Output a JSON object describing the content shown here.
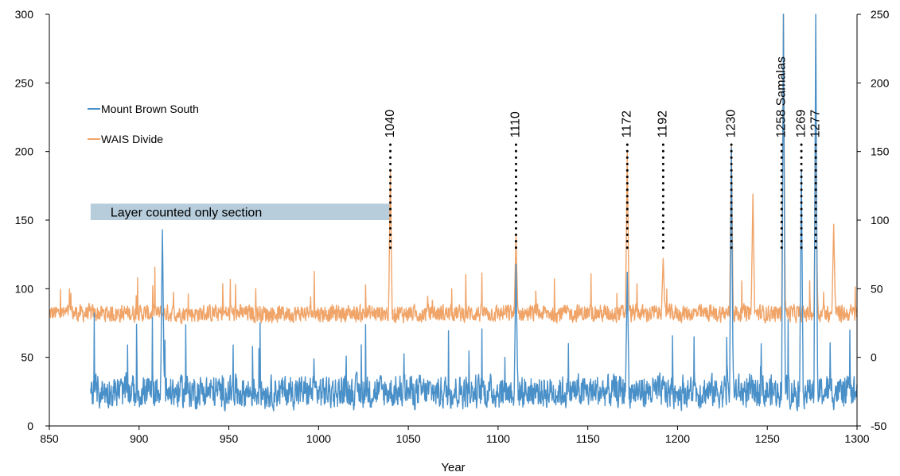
{
  "chart_data": {
    "type": "line",
    "title": "",
    "xlabel": "Year",
    "ylabel": "",
    "ylabel_right": "",
    "xlim": [
      850,
      1300
    ],
    "ylim": [
      0,
      300
    ],
    "ylim_right": [
      -50,
      250
    ],
    "x_ticks": [
      850,
      900,
      950,
      1000,
      1050,
      1100,
      1150,
      1200,
      1250,
      1300
    ],
    "y_ticks": [
      0,
      50,
      100,
      150,
      200,
      250,
      300
    ],
    "y_ticks_right": [
      -50,
      0,
      50,
      100,
      150,
      200,
      250
    ],
    "grid": false,
    "legend_position": "left",
    "series": [
      {
        "name": "Mount Brown South",
        "axis": "left",
        "color": "#4a90c8",
        "x_range": [
          873,
          1300
        ],
        "baseline": 25,
        "noise": 15,
        "peaks": [
          [
            913,
            143
          ],
          [
            1110,
            118
          ],
          [
            1172,
            112
          ],
          [
            1230,
            203
          ],
          [
            1259,
            300
          ],
          [
            1269,
            186
          ],
          [
            1277,
            300
          ]
        ]
      },
      {
        "name": "WAIS Divide",
        "axis": "right",
        "color": "#f0a468",
        "x_range": [
          850,
          1300
        ],
        "baseline": 32,
        "noise": 8,
        "peaks": [
          [
            1040,
            137
          ],
          [
            1110,
            89
          ],
          [
            1172,
            149
          ],
          [
            1192,
            72
          ],
          [
            1230,
            155
          ],
          [
            1242,
            119
          ],
          [
            1259,
            250
          ],
          [
            1277,
            168
          ],
          [
            1287,
            97
          ]
        ]
      }
    ],
    "annotations": {
      "events": [
        {
          "year": 1040,
          "label": "1040"
        },
        {
          "year": 1110,
          "label": "1110"
        },
        {
          "year": 1172,
          "label": "1172"
        },
        {
          "year": 1192,
          "label": "1192"
        },
        {
          "year": 1230,
          "label": "1230"
        },
        {
          "year": 1258,
          "label": "1258 Samalas"
        },
        {
          "year": 1269,
          "label": "1269"
        },
        {
          "year": 1277,
          "label": "1277"
        }
      ],
      "band": {
        "label": "Layer counted only section",
        "x_start": 873,
        "x_end": 1040,
        "y_from": 150,
        "y_to": 162,
        "color": "#b7cddc"
      }
    }
  }
}
